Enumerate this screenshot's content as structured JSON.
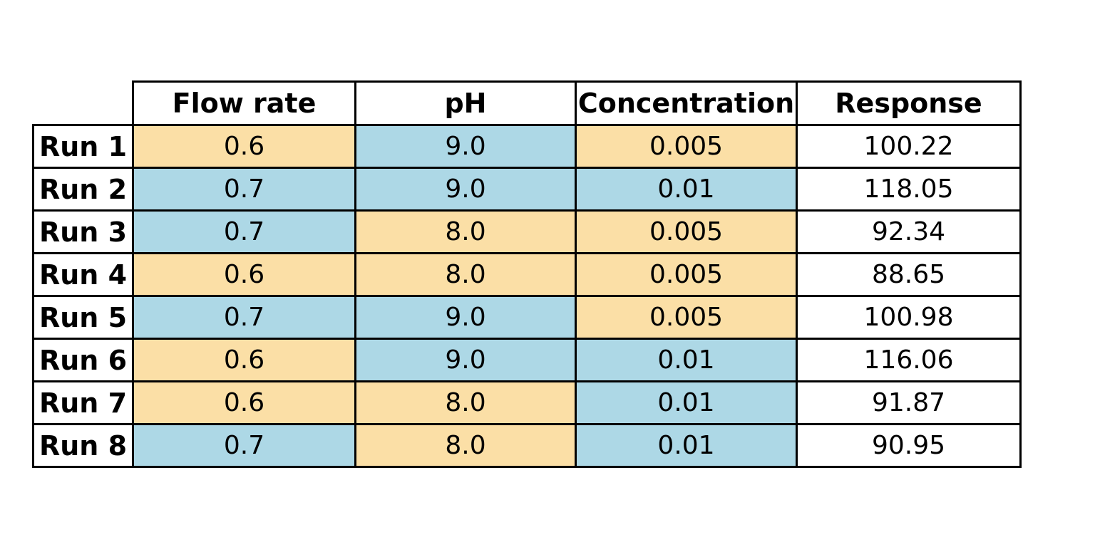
{
  "figure": {
    "background": "#ffffff"
  },
  "colors": {
    "low": "#FBDFA6",
    "high": "#ADD8E6",
    "plain": "#FFFFFF",
    "border": "#000000",
    "text": "#000000"
  },
  "legend_semantics": {
    "low": "orange cell = factor at low level",
    "high": "blue cell = factor at high level"
  },
  "table": {
    "corner_label": "",
    "columns": [
      "Flow rate",
      "pH",
      "Concentration",
      "Response"
    ],
    "rows": [
      {
        "label": "Run 1",
        "cells": [
          {
            "value": "0.6",
            "bg": "low"
          },
          {
            "value": "9.0",
            "bg": "high"
          },
          {
            "value": "0.005",
            "bg": "low"
          },
          {
            "value": "100.22",
            "bg": "plain"
          }
        ]
      },
      {
        "label": "Run 2",
        "cells": [
          {
            "value": "0.7",
            "bg": "high"
          },
          {
            "value": "9.0",
            "bg": "high"
          },
          {
            "value": "0.01",
            "bg": "high"
          },
          {
            "value": "118.05",
            "bg": "plain"
          }
        ]
      },
      {
        "label": "Run 3",
        "cells": [
          {
            "value": "0.7",
            "bg": "high"
          },
          {
            "value": "8.0",
            "bg": "low"
          },
          {
            "value": "0.005",
            "bg": "low"
          },
          {
            "value": "92.34",
            "bg": "plain"
          }
        ]
      },
      {
        "label": "Run 4",
        "cells": [
          {
            "value": "0.6",
            "bg": "low"
          },
          {
            "value": "8.0",
            "bg": "low"
          },
          {
            "value": "0.005",
            "bg": "low"
          },
          {
            "value": "88.65",
            "bg": "plain"
          }
        ]
      },
      {
        "label": "Run 5",
        "cells": [
          {
            "value": "0.7",
            "bg": "high"
          },
          {
            "value": "9.0",
            "bg": "high"
          },
          {
            "value": "0.005",
            "bg": "low"
          },
          {
            "value": "100.98",
            "bg": "plain"
          }
        ]
      },
      {
        "label": "Run 6",
        "cells": [
          {
            "value": "0.6",
            "bg": "low"
          },
          {
            "value": "9.0",
            "bg": "high"
          },
          {
            "value": "0.01",
            "bg": "high"
          },
          {
            "value": "116.06",
            "bg": "plain"
          }
        ]
      },
      {
        "label": "Run 7",
        "cells": [
          {
            "value": "0.6",
            "bg": "low"
          },
          {
            "value": "8.0",
            "bg": "low"
          },
          {
            "value": "0.01",
            "bg": "high"
          },
          {
            "value": "91.87",
            "bg": "plain"
          }
        ]
      },
      {
        "label": "Run 8",
        "cells": [
          {
            "value": "0.7",
            "bg": "high"
          },
          {
            "value": "8.0",
            "bg": "low"
          },
          {
            "value": "0.01",
            "bg": "high"
          },
          {
            "value": "90.95",
            "bg": "plain"
          }
        ]
      }
    ]
  },
  "chart_data": {
    "type": "table",
    "title": "",
    "columns": [
      "Flow rate",
      "pH",
      "Concentration",
      "Response"
    ],
    "row_labels": [
      "Run 1",
      "Run 2",
      "Run 3",
      "Run 4",
      "Run 5",
      "Run 6",
      "Run 7",
      "Run 8"
    ],
    "rows": [
      [
        0.6,
        9.0,
        0.005,
        100.22
      ],
      [
        0.7,
        9.0,
        0.01,
        118.05
      ],
      [
        0.7,
        8.0,
        0.005,
        92.34
      ],
      [
        0.6,
        8.0,
        0.005,
        88.65
      ],
      [
        0.7,
        9.0,
        0.005,
        100.98
      ],
      [
        0.6,
        9.0,
        0.01,
        116.06
      ],
      [
        0.6,
        8.0,
        0.01,
        91.87
      ],
      [
        0.7,
        8.0,
        0.01,
        90.95
      ]
    ],
    "factor_levels": {
      "Flow rate": {
        "low": 0.6,
        "high": 0.7
      },
      "pH": {
        "low": 8.0,
        "high": 9.0
      },
      "Concentration": {
        "low": 0.005,
        "high": 0.01
      }
    },
    "cell_color_coding": {
      "#FBDFA6": "factor low level (orange)",
      "#ADD8E6": "factor high level (blue)",
      "#FFFFFF": "response / uncoded"
    }
  }
}
